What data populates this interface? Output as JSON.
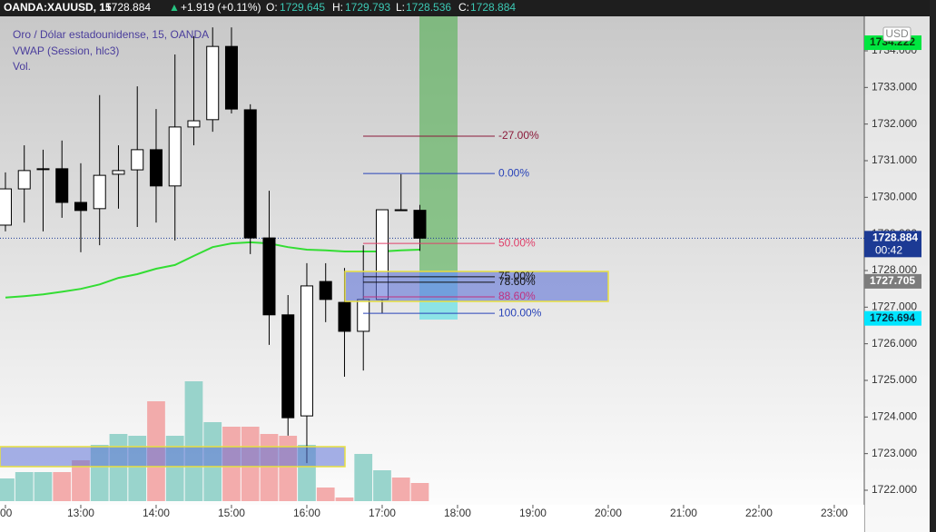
{
  "header": {
    "symbol": "OANDA:XAUUSD, 15",
    "last": 1728.884,
    "arrow": "▲",
    "change": "+1.919 (+0.11%)",
    "o_label": "O:",
    "open": 1729.645,
    "h_label": "H:",
    "high": 1729.793,
    "l_label": "L:",
    "low": 1728.536,
    "c_label": "C:",
    "close": 1728.884
  },
  "chart_data": {
    "type": "candlestick",
    "legend": [
      "Oro / Dólar estadounidense, 15, OANDA",
      "VWAP (Session, hlc3)",
      "Vol."
    ],
    "currency": "USD",
    "x": [
      12,
      12.25,
      12.5,
      12.75,
      13,
      13.25,
      13.5,
      13.75,
      14,
      14.25,
      14.5,
      14.75,
      15,
      15.25,
      15.5,
      15.75,
      16,
      16.25,
      16.5,
      16.75,
      17,
      17.25,
      17.5
    ],
    "open": [
      1729.24,
      1730.23,
      1730.76,
      1730.78,
      1729.86,
      1729.69,
      1730.63,
      1730.75,
      1731.3,
      1730.31,
      1731.92,
      1732.12,
      1734.12,
      1732.39,
      1728.89,
      1726.79,
      1724.03,
      1727.7,
      1727.13,
      1726.34,
      1727.21,
      1729.66,
      1729.645
    ],
    "high": [
      1730.68,
      1731.42,
      1731.3,
      1731.55,
      1730.93,
      1732.79,
      1731.42,
      1733.03,
      1732.41,
      1733.9,
      1734.4,
      1734.64,
      1734.64,
      1732.54,
      1730.18,
      1727.33,
      1728.2,
      1728.2,
      1728.07,
      1728.69,
      1729.66,
      1730.63,
      1729.793
    ],
    "low": [
      1729.07,
      1729.31,
      1729.07,
      1729.44,
      1728.5,
      1728.69,
      1729.69,
      1729.19,
      1729.31,
      1728.82,
      1731.42,
      1731.79,
      1732.29,
      1728.45,
      1725.97,
      1723.49,
      1722.74,
      1726.59,
      1725.1,
      1725.27,
      1726.83,
      1729.63,
      1728.536
    ],
    "close": [
      1730.23,
      1730.73,
      1730.78,
      1729.86,
      1729.64,
      1730.6,
      1730.73,
      1731.3,
      1730.31,
      1731.92,
      1732.09,
      1734.12,
      1732.41,
      1728.89,
      1726.79,
      1723.98,
      1727.58,
      1727.21,
      1726.34,
      1727.21,
      1729.66,
      1729.65,
      1728.884
    ],
    "up_color": "#ffffff",
    "down_color": "#000000",
    "volume": {
      "values": [
        25,
        32,
        32,
        32,
        45,
        62,
        74,
        72,
        110,
        72,
        132,
        87,
        82,
        82,
        74,
        72,
        62,
        15,
        4,
        52,
        34,
        26,
        20
      ],
      "vlim": [
        0,
        534
      ],
      "up_color": "#8ecfc6",
      "down_color": "#f2a3a3"
    },
    "vwap": {
      "values": [
        1727.26,
        1727.3,
        1727.35,
        1727.42,
        1727.5,
        1727.62,
        1727.8,
        1727.9,
        1728.05,
        1728.15,
        1728.4,
        1728.64,
        1728.74,
        1728.77,
        1728.74,
        1728.64,
        1728.57,
        1728.55,
        1728.52,
        1728.52,
        1728.52,
        1728.55,
        1728.57
      ],
      "color": "#33dd33"
    },
    "fib": [
      {
        "label": "-27.00%",
        "price": 1731.67,
        "color": "#8b1a3a"
      },
      {
        "label": "0.00%",
        "price": 1730.65,
        "color": "#2943b8"
      },
      {
        "label": "50.00%",
        "price": 1728.74,
        "color": "#e0406a"
      },
      {
        "label": "75.00%",
        "price": 1727.83,
        "color": "#111111"
      },
      {
        "label": "78.60%",
        "price": 1727.68,
        "color": "#111111"
      },
      {
        "label": "88.60%",
        "price": 1727.28,
        "color": "#c03080"
      },
      {
        "label": "100.00%",
        "price": 1726.83,
        "color": "#2943b8"
      }
    ],
    "last_price": {
      "value": 1728.884,
      "countdown": "00:42",
      "color": "#1c3a94"
    },
    "price_labels": [
      {
        "value": 1734.222,
        "color": "#00e640",
        "text_color": "#0a3a0a"
      },
      {
        "value": 1727.705,
        "color": "#7c7c7c",
        "text_color": "#ffffff"
      },
      {
        "value": 1726.694,
        "color": "#00e5ff",
        "text_color": "#0a2a40"
      }
    ],
    "xlim": [
      11.928,
      23.398
    ],
    "xticks": [
      {
        "value": 12,
        "label": "00"
      },
      {
        "value": 13,
        "label": "13:00"
      },
      {
        "value": 14,
        "label": "14:00"
      },
      {
        "value": 15,
        "label": "15:00"
      },
      {
        "value": 16,
        "label": "16:00"
      },
      {
        "value": 17,
        "label": "17:00"
      },
      {
        "value": 18,
        "label": "18:00"
      },
      {
        "value": 19,
        "label": "19:00"
      },
      {
        "value": 20,
        "label": "20:00"
      },
      {
        "value": 21,
        "label": "21:00"
      },
      {
        "value": 22,
        "label": "22:00"
      },
      {
        "value": 23,
        "label": "23:00"
      }
    ],
    "ylim": [
      1721.603,
      1734.942
    ],
    "yticks": [
      {
        "value": 1722,
        "label": "1722.000"
      },
      {
        "value": 1723,
        "label": "1723.000"
      },
      {
        "value": 1724,
        "label": "1724.000"
      },
      {
        "value": 1725,
        "label": "1725.000"
      },
      {
        "value": 1726,
        "label": "1726.000"
      },
      {
        "value": 1727,
        "label": "1727.000"
      },
      {
        "value": 1728,
        "label": "1728.000"
      },
      {
        "value": 1729,
        "label": "1729.000"
      },
      {
        "value": 1730,
        "label": "1730.000"
      },
      {
        "value": 1731,
        "label": "1731.000"
      },
      {
        "value": 1732,
        "label": "1732.000"
      },
      {
        "value": 1733,
        "label": "1733.000"
      },
      {
        "value": 1734,
        "label": "1734.000"
      }
    ]
  }
}
